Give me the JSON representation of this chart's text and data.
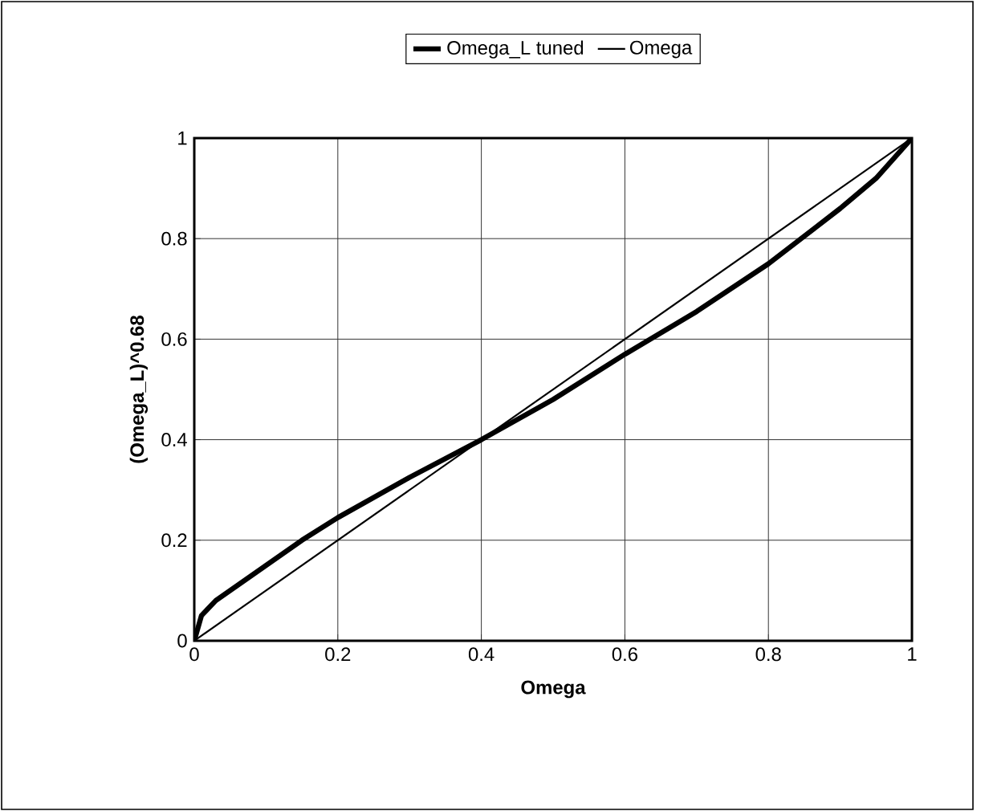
{
  "chart_data": {
    "type": "line",
    "xlabel": "Omega",
    "ylabel": "(Omega_L)^0.68",
    "xlim": [
      0,
      1
    ],
    "ylim": [
      0,
      1
    ],
    "xticks": [
      0,
      0.2,
      0.4,
      0.6,
      0.8,
      1
    ],
    "yticks": [
      0,
      0.2,
      0.4,
      0.6,
      0.8,
      1
    ],
    "grid": true,
    "legend": "top",
    "marker": "none",
    "series": [
      {
        "name": "Omega_L tuned",
        "color": "#000000",
        "x": [
          0,
          0.01,
          0.03,
          0.05,
          0.1,
          0.15,
          0.2,
          0.3,
          0.4,
          0.5,
          0.6,
          0.7,
          0.8,
          0.9,
          0.95,
          1
        ],
        "values": [
          0,
          0.05,
          0.08,
          0.1,
          0.15,
          0.2,
          0.245,
          0.325,
          0.4,
          0.48,
          0.57,
          0.655,
          0.75,
          0.86,
          0.92,
          1
        ]
      },
      {
        "name": "Omega",
        "color": "#000000",
        "x": [
          0,
          1
        ],
        "values": [
          0,
          1
        ]
      }
    ]
  }
}
